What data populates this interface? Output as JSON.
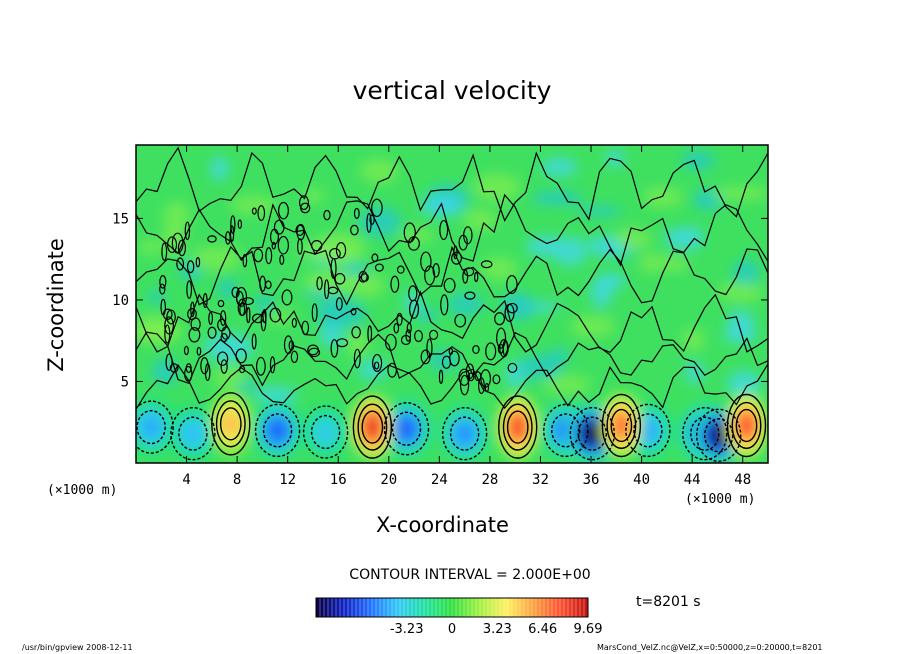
{
  "chart_data": {
    "type": "heatmap",
    "title": "vertical velocity",
    "xlabel": "X-coordinate",
    "ylabel": "Z-coordinate",
    "x_unit_label": "(×1000 m)",
    "xlim": [
      0,
      50
    ],
    "ylim": [
      0,
      19.5
    ],
    "x_ticks": [
      4,
      8,
      12,
      16,
      20,
      24,
      28,
      32,
      36,
      40,
      44,
      48
    ],
    "y_ticks": [
      5,
      10,
      15
    ],
    "contour_interval_label": "CONTOUR INTERVAL = 2.000E+00",
    "colorbar": {
      "range": [
        -9.69,
        9.69
      ],
      "ticks": [
        -3.23,
        0,
        3.23,
        6.46,
        9.69
      ],
      "tick_labels": [
        "-3.23",
        "0",
        "3.23",
        "6.46",
        "9.69"
      ]
    },
    "time_label": "t=8201 s",
    "updrafts": [
      {
        "x": 7.5,
        "z": 2.4,
        "w": 5.2
      },
      {
        "x": 18.7,
        "z": 2.2,
        "w": 8.5
      },
      {
        "x": 30.2,
        "z": 2.2,
        "w": 8.0
      },
      {
        "x": 38.4,
        "z": 2.3,
        "w": 7.0
      },
      {
        "x": 48.3,
        "z": 2.3,
        "w": 7.8
      }
    ],
    "downdrafts": [
      {
        "x": 1.2,
        "z": 2.2,
        "w": -4.5
      },
      {
        "x": 4.5,
        "z": 1.8,
        "w": -4.0
      },
      {
        "x": 11.2,
        "z": 2.0,
        "w": -6.0
      },
      {
        "x": 15.0,
        "z": 1.9,
        "w": -3.5
      },
      {
        "x": 21.4,
        "z": 2.1,
        "w": -6.0
      },
      {
        "x": 26.0,
        "z": 1.8,
        "w": -5.0
      },
      {
        "x": 34.0,
        "z": 2.0,
        "w": -5.5
      },
      {
        "x": 36.1,
        "z": 1.8,
        "w": -9.5
      },
      {
        "x": 40.5,
        "z": 2.0,
        "w": -4.5
      },
      {
        "x": 45.0,
        "z": 1.8,
        "w": -8.0
      },
      {
        "x": 46.1,
        "z": 1.7,
        "w": -9.0
      }
    ]
  },
  "footer": {
    "left": "/usr/bin/gpview   2008-12-11",
    "right": "MarsCond_VelZ.nc@VelZ,x=0:50000,z=0:20000,t=8201"
  }
}
